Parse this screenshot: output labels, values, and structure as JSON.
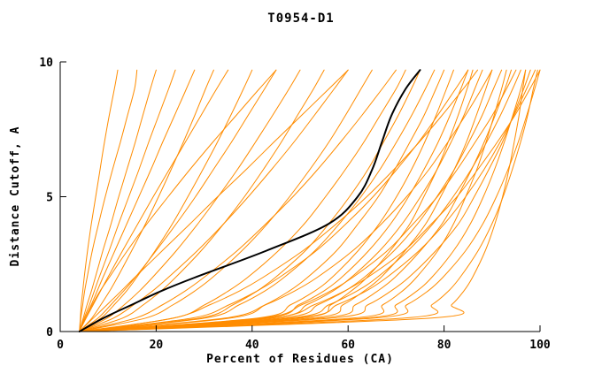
{
  "chart_data": {
    "type": "line",
    "title": "T0954-D1",
    "xlabel": "Percent of Residues (CA)",
    "ylabel": "Distance Cutoff, A",
    "xlim": [
      0,
      100
    ],
    "ylim": [
      0,
      10
    ],
    "x_ticks": [
      0,
      20,
      40,
      60,
      80,
      100
    ],
    "y_ticks": [
      0,
      5,
      10
    ],
    "grid": false,
    "legend": "none",
    "colors": {
      "model": "#ff8c00",
      "highlight": "#000000"
    },
    "y_anchors": [
      0,
      0.5,
      1,
      1.5,
      2,
      3,
      4,
      5,
      6,
      7,
      8,
      9,
      9.7
    ],
    "series": [
      {
        "color": "#ff8c00",
        "width": 1,
        "x": [
          4,
          4.2,
          4.4,
          4.7,
          5,
          5.7,
          6.5,
          7.4,
          8.3,
          9.2,
          10.2,
          11.3,
          12
        ]
      },
      {
        "color": "#ff8c00",
        "width": 1,
        "x": [
          4,
          4.3,
          4.7,
          5.1,
          5.6,
          6.7,
          8,
          9.4,
          10.9,
          12.5,
          14,
          15.5,
          16
        ]
      },
      {
        "color": "#ff8c00",
        "width": 1,
        "x": [
          4,
          4.8,
          5.6,
          6.5,
          7.3,
          8.9,
          10.6,
          12.2,
          13.9,
          15.6,
          17.2,
          18.8,
          20
        ]
      },
      {
        "color": "#ff8c00",
        "width": 1,
        "x": [
          4,
          5,
          6.1,
          7.1,
          8.1,
          10.2,
          12.2,
          14.3,
          16.4,
          18.4,
          20.5,
          22.6,
          24
        ]
      },
      {
        "color": "#ff8c00",
        "width": 1,
        "x": [
          4,
          5.2,
          6.5,
          7.7,
          8.9,
          11.4,
          13.9,
          16.4,
          18.9,
          21.3,
          23.8,
          26.3,
          28
        ]
      },
      {
        "color": "#ff8c00",
        "width": 1,
        "x": [
          4,
          6.6,
          8.5,
          10.3,
          11.9,
          14.9,
          17.8,
          20.5,
          23.1,
          25.6,
          28,
          30.3,
          32
        ]
      },
      {
        "color": "#ff8c00",
        "width": 1,
        "x": [
          4,
          5.4,
          6.9,
          8.4,
          9.9,
          13,
          16.2,
          19.4,
          22.7,
          26,
          29.3,
          32.6,
          35
        ]
      },
      {
        "color": "#ff8c00",
        "width": 1,
        "x": [
          4,
          8.5,
          11.3,
          13.8,
          15.9,
          19.8,
          23.4,
          26.6,
          29.7,
          32.7,
          35.5,
          38.2,
          40
        ]
      },
      {
        "color": "#ff8c00",
        "width": 1,
        "x": [
          4,
          7.9,
          10.6,
          13.2,
          15.6,
          20,
          24.2,
          28.2,
          31.9,
          35.6,
          39.1,
          42.6,
          45
        ]
      },
      {
        "color": "#ff8c00",
        "width": 1,
        "x": [
          4,
          9.8,
          13.4,
          16.5,
          19.2,
          24.2,
          28.7,
          32.9,
          36.9,
          40.6,
          44.2,
          47.7,
          50
        ]
      },
      {
        "color": "#ff8c00",
        "width": 1,
        "x": [
          4,
          13,
          17.4,
          21,
          24,
          29.4,
          34.1,
          38.4,
          42.3,
          46,
          49.4,
          52.8,
          55
        ]
      },
      {
        "color": "#ff8c00",
        "width": 1,
        "x": [
          4,
          11.1,
          15.4,
          19.2,
          22.5,
          28.6,
          34.1,
          39.2,
          44,
          48.6,
          52.9,
          57.1,
          60
        ]
      },
      {
        "color": "#ff8c00",
        "width": 1,
        "x": [
          4,
          17.8,
          23.6,
          28,
          31.7,
          37.9,
          43.2,
          47.8,
          52,
          55.9,
          59.4,
          62.7,
          65
        ]
      },
      {
        "color": "#ff8c00",
        "width": 1,
        "x": [
          4,
          15.7,
          21.4,
          26,
          29.9,
          36.9,
          42.9,
          48.5,
          53.6,
          58.3,
          62.8,
          67.1,
          70
        ]
      },
      {
        "color": "#ff8c00",
        "width": 1,
        "x": [
          4,
          23.7,
          30.2,
          35,
          39,
          45.5,
          50.9,
          55.3,
          59.4,
          63.2,
          66.6,
          70,
          72
        ]
      },
      {
        "color": "#ff8c00",
        "width": 1,
        "x": [
          4,
          29.1,
          36.1,
          41,
          44.8,
          51.1,
          56,
          60.3,
          64.1,
          67.3,
          70.4,
          73.2,
          75
        ]
      },
      {
        "color": "#ff8c00",
        "width": 1,
        "x": [
          4,
          30.2,
          37.4,
          42.6,
          46.6,
          53.1,
          58.2,
          62.7,
          66.6,
          70,
          73.2,
          76.1,
          78
        ]
      },
      {
        "color": "#ff8c00",
        "width": 1,
        "x": [
          4,
          35.5,
          42.8,
          47.7,
          51.5,
          57.6,
          62.1,
          66.3,
          69.7,
          72.8,
          75.8,
          78.3,
          80
        ]
      },
      {
        "color": "#ff8c00",
        "width": 1,
        "x": [
          4,
          41.2,
          48.1,
          53,
          56.6,
          62.1,
          66.5,
          70.1,
          73.2,
          75.9,
          78.3,
          80.5,
          82
        ]
      },
      {
        "color": "#ff8c00",
        "width": 1,
        "x": [
          4,
          42.6,
          49.8,
          54.9,
          58.6,
          64.3,
          68.9,
          72.6,
          75.8,
          78.7,
          81.2,
          83.5,
          85
        ]
      },
      {
        "color": "#ff8c00",
        "width": 1,
        "x": [
          4,
          49.9,
          56.5,
          60.6,
          63.9,
          68.8,
          72.9,
          75.8,
          78.5,
          80.8,
          82.9,
          84.8,
          86
        ]
      },
      {
        "color": "#ff8c00",
        "width": 1,
        "x": [
          4,
          44.1,
          51.5,
          56.8,
          60.6,
          66.6,
          71.3,
          75.1,
          78.5,
          81.4,
          84.1,
          86.4,
          88
        ]
      },
      {
        "color": "#ff8c00",
        "width": 1,
        "x": [
          4,
          52.2,
          59,
          63.3,
          66.8,
          71.9,
          76.2,
          79.3,
          82.1,
          84.6,
          86.7,
          88.7,
          90
        ]
      },
      {
        "color": "#ff8c00",
        "width": 1,
        "x": [
          4,
          34.4,
          42.9,
          48.8,
          53.5,
          61,
          67,
          72.2,
          76.8,
          80.7,
          84.4,
          87.8,
          90
        ]
      },
      {
        "color": "#ff8c00",
        "width": 1,
        "x": [
          4,
          46,
          53.8,
          59.3,
          63.3,
          69.6,
          74.5,
          78.5,
          82.1,
          85.1,
          87.9,
          90.3,
          92
        ]
      },
      {
        "color": "#ff8c00",
        "width": 1,
        "x": [
          4,
          61,
          67.3,
          71.3,
          74.2,
          78.7,
          82,
          84.5,
          86.8,
          88.7,
          90.4,
          92,
          93
        ]
      },
      {
        "color": "#ff8c00",
        "width": 1,
        "x": [
          4,
          54.4,
          61.6,
          66.1,
          69.7,
          75.1,
          79.6,
          82.8,
          85.7,
          88.3,
          90.6,
          92.7,
          94
        ]
      },
      {
        "color": "#ff8c00",
        "width": 1,
        "x": [
          4,
          41.8,
          50.4,
          56.3,
          60.9,
          68.2,
          73.6,
          78.6,
          82.7,
          86.4,
          90,
          93,
          95
        ]
      },
      {
        "color": "#ff8c00",
        "width": 1,
        "x": [
          4,
          47.9,
          56.1,
          61.8,
          66,
          72.5,
          77.7,
          81.9,
          85.6,
          88.8,
          91.7,
          94.3,
          96
        ]
      },
      {
        "color": "#ff8c00",
        "width": 1,
        "x": [
          4,
          63.6,
          70.1,
          74.3,
          77.4,
          82,
          85.5,
          88.2,
          90.5,
          92.5,
          94.3,
          96,
          97
        ]
      },
      {
        "color": "#ff8c00",
        "width": 1,
        "x": [
          4,
          56.6,
          64.2,
          68.9,
          72.6,
          78.3,
          83,
          86.3,
          89.3,
          92.1,
          94.4,
          96.6,
          98
        ]
      },
      {
        "color": "#ff8c00",
        "width": 1,
        "x": [
          4,
          49.3,
          57.8,
          63.7,
          68,
          74.8,
          80.1,
          84.5,
          88.3,
          91.6,
          94.5,
          97.2,
          99
        ]
      },
      {
        "color": "#ff8c00",
        "width": 1,
        "x": [
          4,
          71.8,
          77.5,
          80.9,
          83.3,
          87.1,
          90,
          92.3,
          94.2,
          95.9,
          97.4,
          98.6,
          99.5
        ]
      },
      {
        "color": "#ff8c00",
        "width": 1,
        "x": [
          4,
          65.5,
          72.3,
          76.6,
          79.7,
          84.5,
          88.1,
          90.9,
          93.3,
          95.4,
          97.2,
          98.9,
          100
        ]
      },
      {
        "color": "#ff8c00",
        "width": 1,
        "x": [
          4,
          43.8,
          53,
          59.2,
          64,
          71.7,
          77.4,
          82.7,
          87,
          91,
          94.7,
          97.9,
          100
        ]
      },
      {
        "color": "#ff8c00",
        "width": 1,
        "x": [
          5,
          23.6,
          31.3,
          37.3,
          42.2,
          50.6,
          57.6,
          63.9,
          69.5,
          74.7,
          79.5,
          84,
          87
        ]
      },
      {
        "color": "#ff8c00",
        "width": 1,
        "x": [
          4,
          6.9,
          9.8,
          12.7,
          15.5,
          21.3,
          27.1,
          32.8,
          38.7,
          44.4,
          50.2,
          56,
          60
        ]
      },
      {
        "color": "#ff8c00",
        "width": 1,
        "x": [
          4,
          5.2,
          6.7,
          8.3,
          10.2,
          14,
          18.1,
          22.5,
          27,
          31.7,
          36.6,
          41.5,
          45
        ]
      },
      {
        "color": "#ff8c00",
        "width": 1,
        "x": [
          4,
          27.5,
          35.3,
          41,
          45.6,
          53.4,
          59.6,
          65.2,
          70.1,
          74.6,
          78.6,
          82.4,
          85
        ]
      },
      {
        "color": "#ff8c00",
        "width": 1,
        "x": [
          4,
          77.4,
          81.6,
          84.1,
          85.9,
          88.6,
          90.6,
          92.2,
          93.5,
          94.6,
          95.6,
          96.4,
          97
        ]
      },
      {
        "color": "#000000",
        "width": 2,
        "x": [
          4,
          9,
          15,
          21,
          28,
          43,
          56,
          62,
          65,
          67,
          69,
          72,
          75
        ]
      }
    ]
  }
}
